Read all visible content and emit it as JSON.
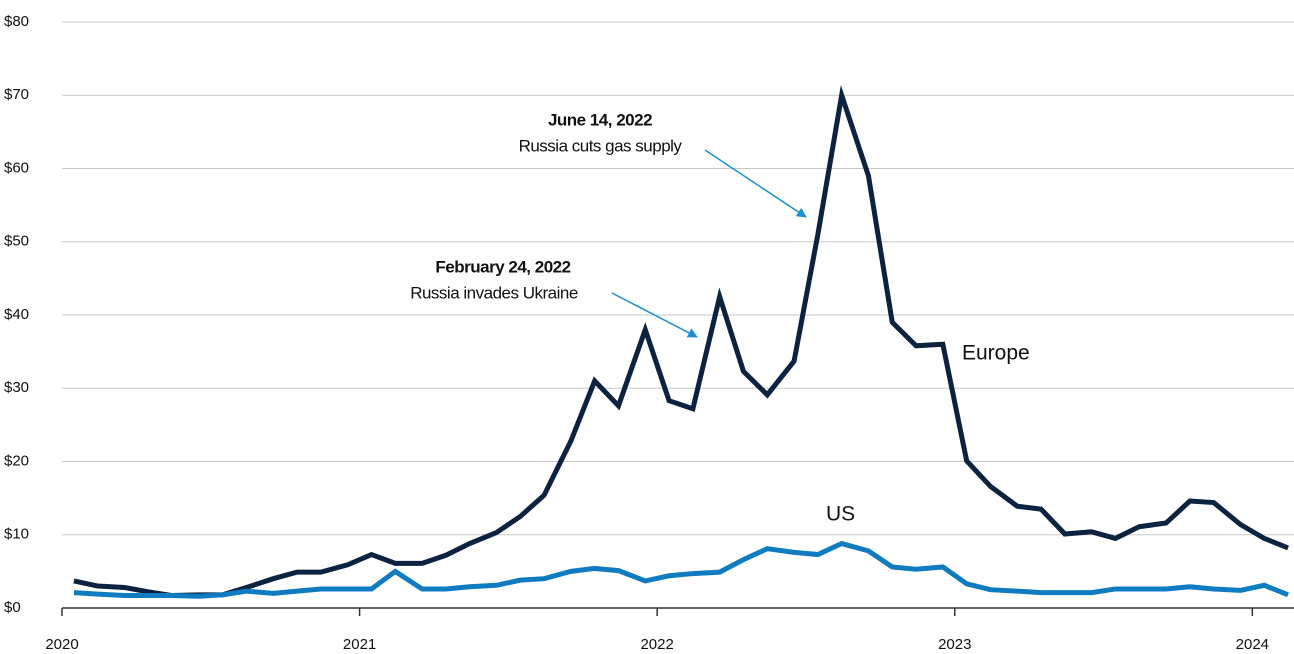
{
  "chart_data": {
    "type": "line",
    "x": [
      2020.04,
      2020.12,
      2020.21,
      2020.29,
      2020.37,
      2020.46,
      2020.54,
      2020.62,
      2020.71,
      2020.79,
      2020.87,
      2020.96,
      2021.04,
      2021.12,
      2021.21,
      2021.29,
      2021.37,
      2021.46,
      2021.54,
      2021.62,
      2021.71,
      2021.79,
      2021.87,
      2021.96,
      2022.04,
      2022.12,
      2022.21,
      2022.29,
      2022.37,
      2022.46,
      2022.54,
      2022.62,
      2022.71,
      2022.79,
      2022.87,
      2022.96,
      2023.04,
      2023.12,
      2023.21,
      2023.29,
      2023.37,
      2023.46,
      2023.54,
      2023.62,
      2023.71,
      2023.79,
      2023.87,
      2023.96,
      2024.04,
      2024.12
    ],
    "series": [
      {
        "name": "Europe",
        "color": "#0b2240",
        "values": [
          3.7,
          3.0,
          2.8,
          2.2,
          1.7,
          1.8,
          1.8,
          2.8,
          4.0,
          4.9,
          4.9,
          5.9,
          7.3,
          6.1,
          6.1,
          7.2,
          8.8,
          10.3,
          12.5,
          15.4,
          22.8,
          31.0,
          27.6,
          38.0,
          28.3,
          27.2,
          42.5,
          32.3,
          29.1,
          33.7,
          51.0,
          70.0,
          59.0,
          39.0,
          35.8,
          36.0,
          20.1,
          16.6,
          13.9,
          13.5,
          10.1,
          10.4,
          9.5,
          11.1,
          11.6,
          14.6,
          14.4,
          11.4,
          9.5,
          8.2
        ]
      },
      {
        "name": "US",
        "color": "#0f7bc0",
        "values": [
          2.1,
          1.9,
          1.7,
          1.7,
          1.7,
          1.6,
          1.8,
          2.3,
          2.0,
          2.3,
          2.6,
          2.6,
          2.6,
          5.0,
          2.6,
          2.6,
          2.9,
          3.1,
          3.8,
          4.0,
          5.0,
          5.4,
          5.1,
          3.7,
          4.4,
          4.7,
          4.9,
          6.6,
          8.1,
          7.6,
          7.3,
          8.8,
          7.8,
          5.6,
          5.3,
          5.6,
          3.3,
          2.5,
          2.3,
          2.1,
          2.1,
          2.1,
          2.6,
          2.6,
          2.6,
          2.9,
          2.6,
          2.4,
          3.1,
          1.8
        ]
      }
    ],
    "annotations": [
      {
        "date": "February 24, 2022",
        "text": "Russia invades Ukraine"
      },
      {
        "date": "June 14, 2022",
        "text": "Russia cuts gas supply"
      }
    ],
    "xlim": [
      2020,
      2024.14
    ],
    "xticks": [
      2020,
      2021,
      2022,
      2023,
      2024
    ],
    "ylim": [
      0,
      80
    ],
    "yticks": [
      {
        "value": 0,
        "label": "$0"
      },
      {
        "value": 10,
        "label": "$10"
      },
      {
        "value": 20,
        "label": "$20"
      },
      {
        "value": 30,
        "label": "$30"
      },
      {
        "value": 40,
        "label": "$40"
      },
      {
        "value": 50,
        "label": "$50"
      },
      {
        "value": 60,
        "label": "$60"
      },
      {
        "value": 70,
        "label": "$70"
      },
      {
        "value": 80,
        "label": "$80"
      }
    ],
    "grid": true
  }
}
